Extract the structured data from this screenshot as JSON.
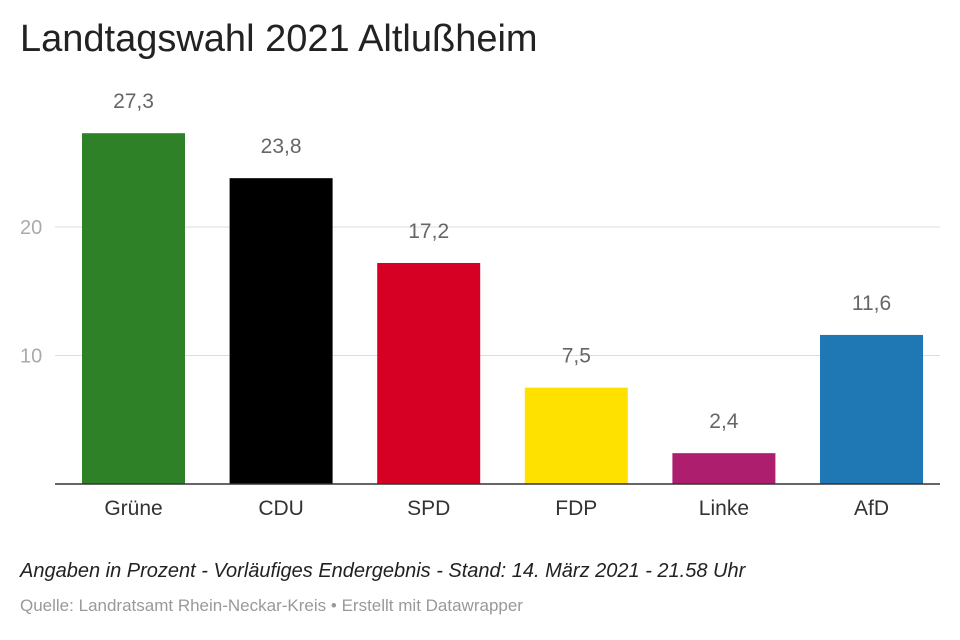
{
  "title": "Landtagswahl 2021 Altlußheim",
  "notes": "Angaben in Prozent - Vorläufiges Endergebnis - Stand: 14. März 2021 - 21.58 Uhr",
  "footer": {
    "source_label": "Quelle:",
    "source_value": "Landratsamt Rhein-Neckar-Kreis",
    "separator": "•",
    "credit": "Erstellt mit Datawrapper"
  },
  "chart_data": {
    "type": "bar",
    "categories": [
      "Grüne",
      "CDU",
      "SPD",
      "FDP",
      "Linke",
      "AfD"
    ],
    "values": [
      27.3,
      23.8,
      17.2,
      7.5,
      2.4,
      11.6
    ],
    "value_labels": [
      "27,3",
      "23,8",
      "17,2",
      "7,5",
      "2,4",
      "11,6"
    ],
    "colors": [
      "#2e8126",
      "#000000",
      "#d60024",
      "#ffe100",
      "#ae1e6e",
      "#1f78b4"
    ],
    "yticks": [
      10,
      20
    ],
    "ytick_labels": [
      "10",
      "20"
    ],
    "ylim": [
      0,
      27.3
    ],
    "grid": true,
    "xlabel": "",
    "ylabel": ""
  }
}
